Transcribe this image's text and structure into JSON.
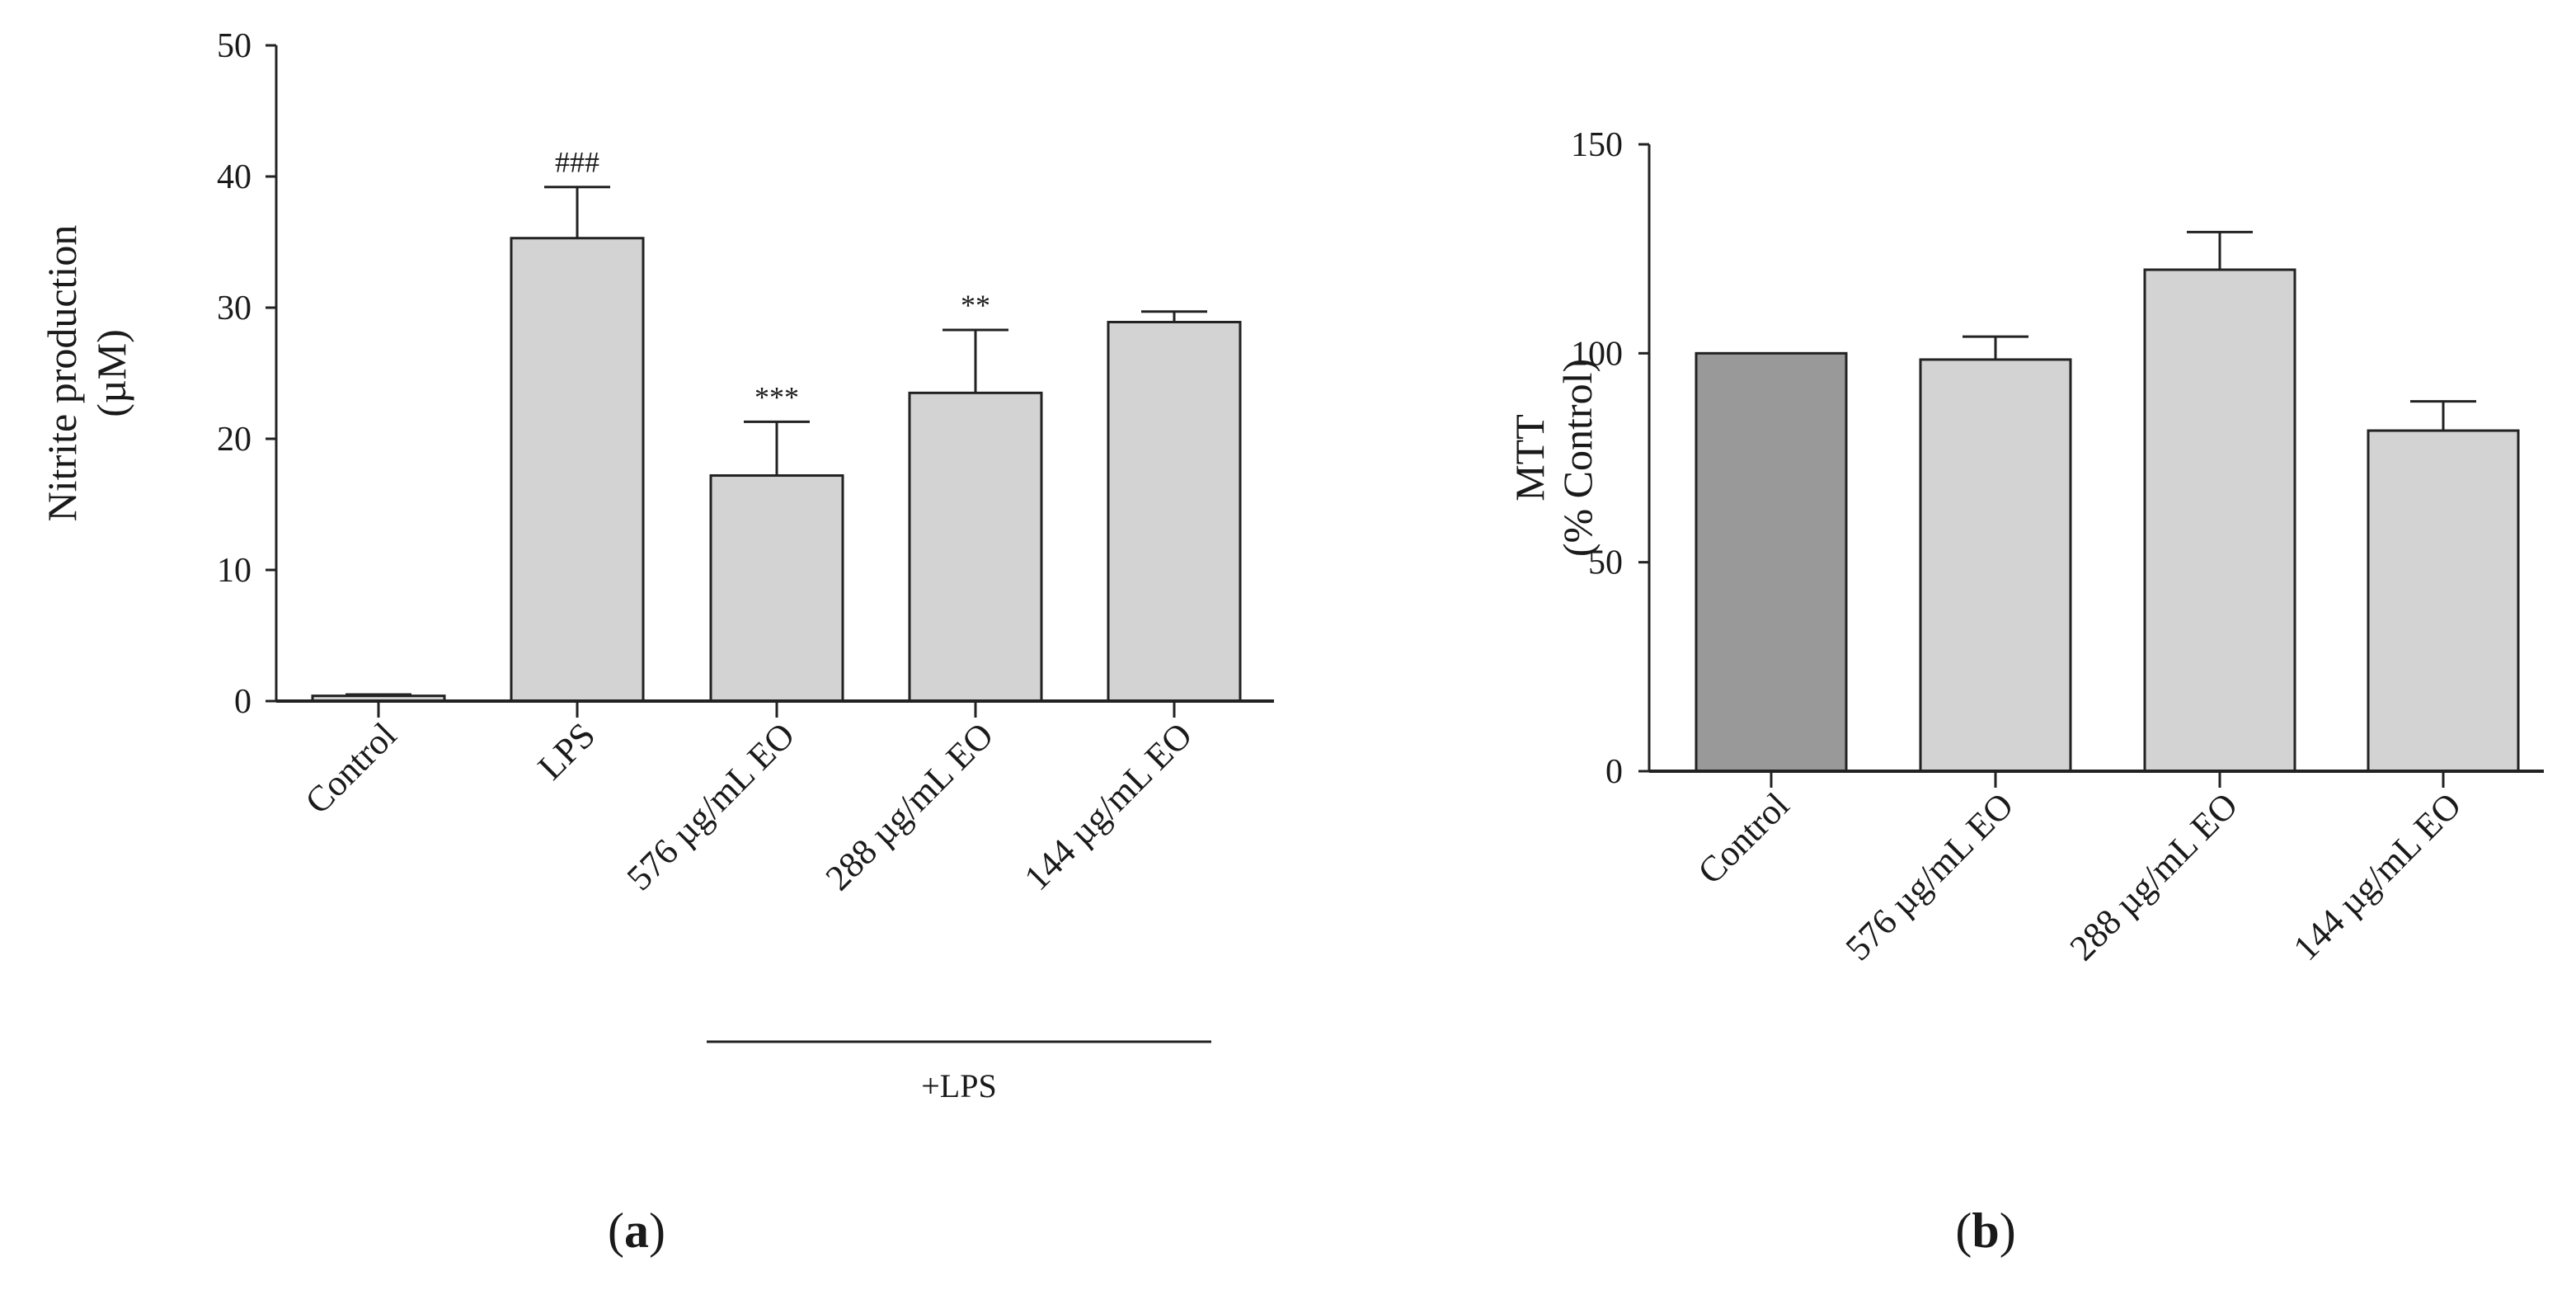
{
  "chart_data": [
    {
      "panel": "a",
      "type": "bar",
      "title": "",
      "ylabel_lines": [
        "Nitrite production",
        "(µM)"
      ],
      "xlabel": "",
      "categories": [
        "Control",
        "LPS",
        "576 µg/mL EO",
        "288 µg/mL EO",
        "144 µg/mL EO"
      ],
      "values": [
        0.4,
        35.3,
        17.2,
        23.5,
        28.9
      ],
      "errors": [
        0.1,
        3.9,
        4.1,
        4.8,
        0.8
      ],
      "annotations": [
        "",
        "###",
        "***",
        "**",
        ""
      ],
      "bar_colors": [
        "#d3d3d3",
        "#d3d3d3",
        "#d3d3d3",
        "#d3d3d3",
        "#d3d3d3"
      ],
      "ylim": [
        0,
        50
      ],
      "yticks": [
        0,
        10,
        20,
        30,
        40,
        50
      ],
      "group_label": "+LPS",
      "group_categories": [
        "576 µg/mL EO",
        "288 µg/mL EO",
        "144 µg/mL EO"
      ]
    },
    {
      "panel": "b",
      "type": "bar",
      "title": "",
      "ylabel_lines": [
        "MTT",
        "(% Control)"
      ],
      "xlabel": "",
      "categories": [
        "Control",
        "576 µg/mL EO",
        "288 µg/mL EO",
        "144 µg/mL EO"
      ],
      "values": [
        100,
        98.5,
        120,
        81.5
      ],
      "errors": [
        0,
        5.5,
        9,
        7
      ],
      "annotations": [
        "",
        "",
        "",
        ""
      ],
      "bar_colors": [
        "#999999",
        "#d3d3d3",
        "#d3d3d3",
        "#d3d3d3"
      ],
      "ylim": [
        0,
        150
      ],
      "yticks": [
        0,
        50,
        100,
        150
      ]
    }
  ],
  "panel_labels": {
    "a": {
      "open": "(",
      "letter": "a",
      "close": ")"
    },
    "b": {
      "open": "(",
      "letter": "b",
      "close": ")"
    }
  }
}
